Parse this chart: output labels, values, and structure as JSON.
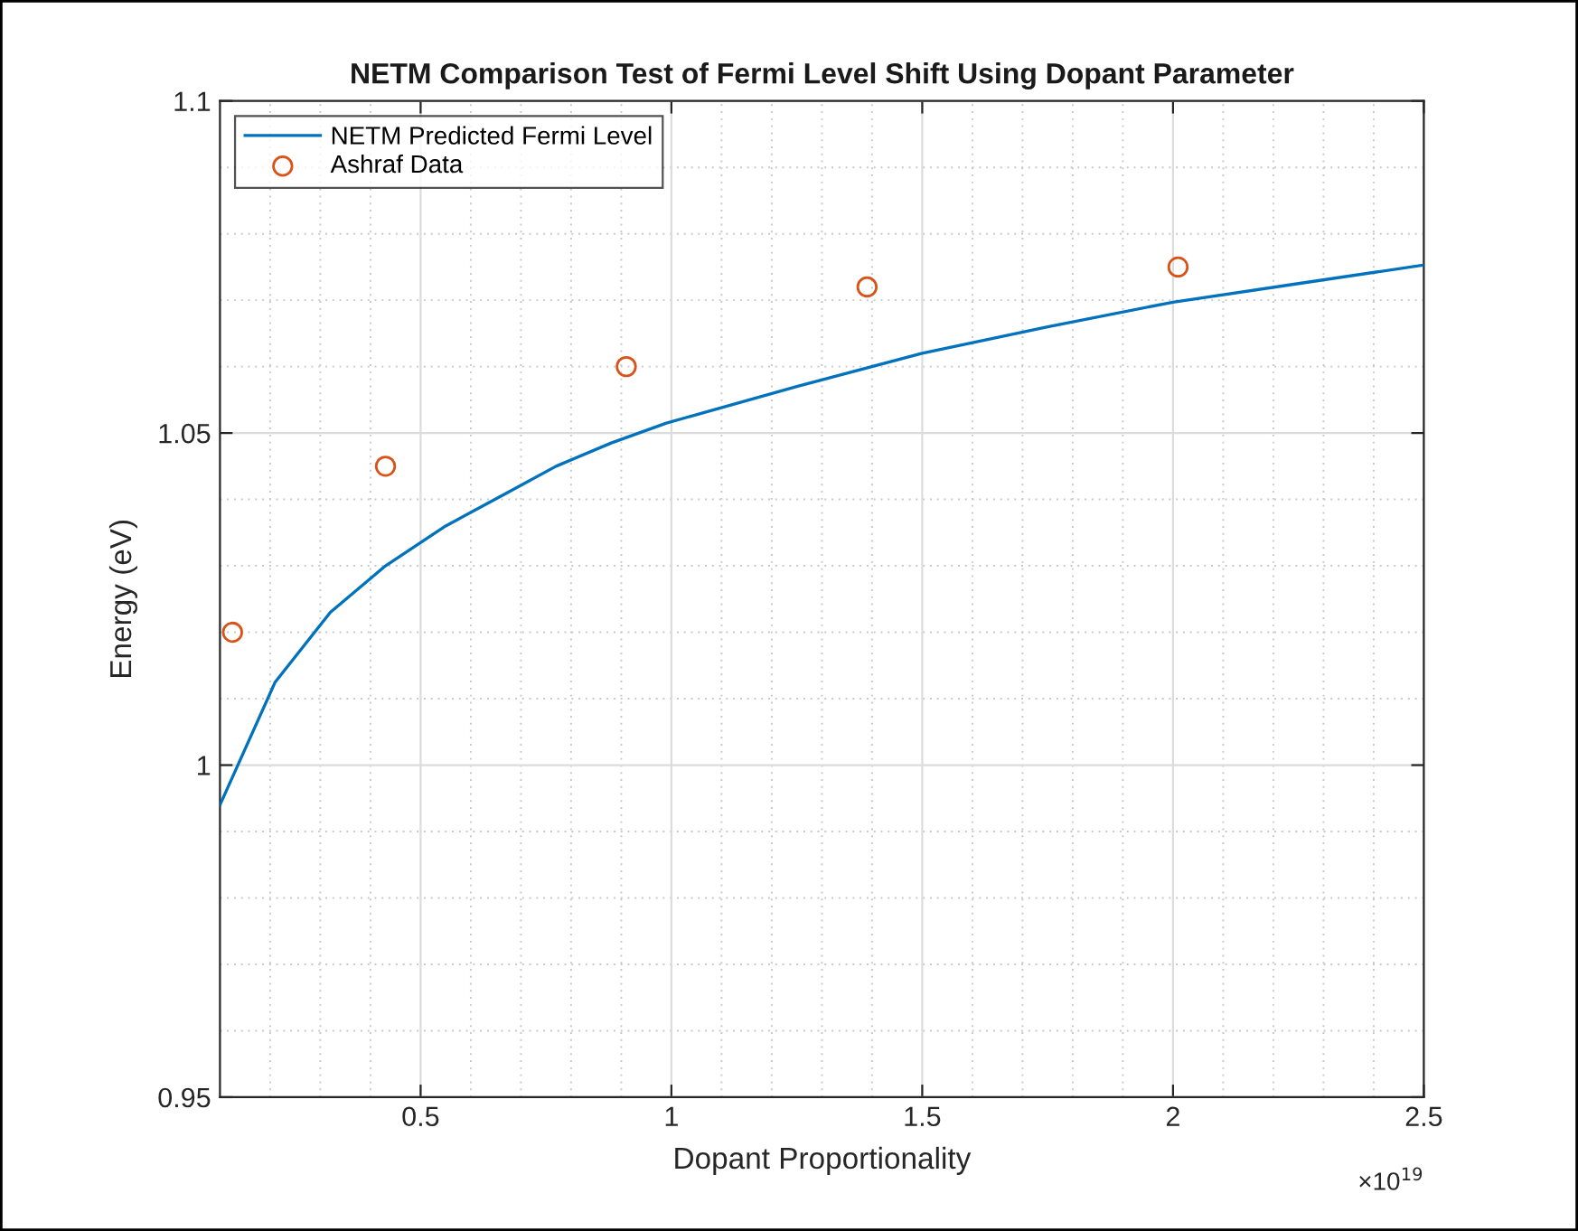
{
  "chart_data": {
    "type": "line",
    "title": "NETM Comparison Test of Fermi Level Shift Using Dopant Parameter",
    "xlabel": "Dopant Proportionality",
    "ylabel": "Energy (eV)",
    "annotations": [
      "×10$^{19}$"
    ],
    "series": [
      {
        "name": "NETM Predicted Fermi Level",
        "color": "#0072bd",
        "marker": "none",
        "line_style": "solid",
        "x": [
          0.1,
          0.21,
          0.32,
          0.43,
          0.55,
          0.66,
          0.77,
          0.88,
          0.99,
          1.25,
          1.5,
          1.75,
          2.0,
          2.25,
          2.5
        ],
        "values": [
          0.994,
          1.0125,
          1.023,
          1.03,
          1.036,
          1.0405,
          1.045,
          1.0485,
          1.0515,
          1.057,
          1.062,
          1.066,
          1.0697,
          1.0725,
          1.0753
        ]
      },
      {
        "name": "Ashraf Data",
        "type": "scatter",
        "color": "#d95319",
        "marker": "circle",
        "x": [
          0.125,
          0.43,
          0.91,
          1.39,
          2.01
        ],
        "values": [
          1.02,
          1.045,
          1.06,
          1.072,
          1.075
        ]
      }
    ],
    "xlim": [
      0.1,
      2.5
    ],
    "xticks": [
      0.5,
      1,
      1.5,
      2,
      2.5
    ],
    "ylim": [
      0.95,
      1.1
    ],
    "yticks": [
      0.95,
      1,
      1.05,
      1.1
    ],
    "grid": true,
    "legend": "top left"
  }
}
